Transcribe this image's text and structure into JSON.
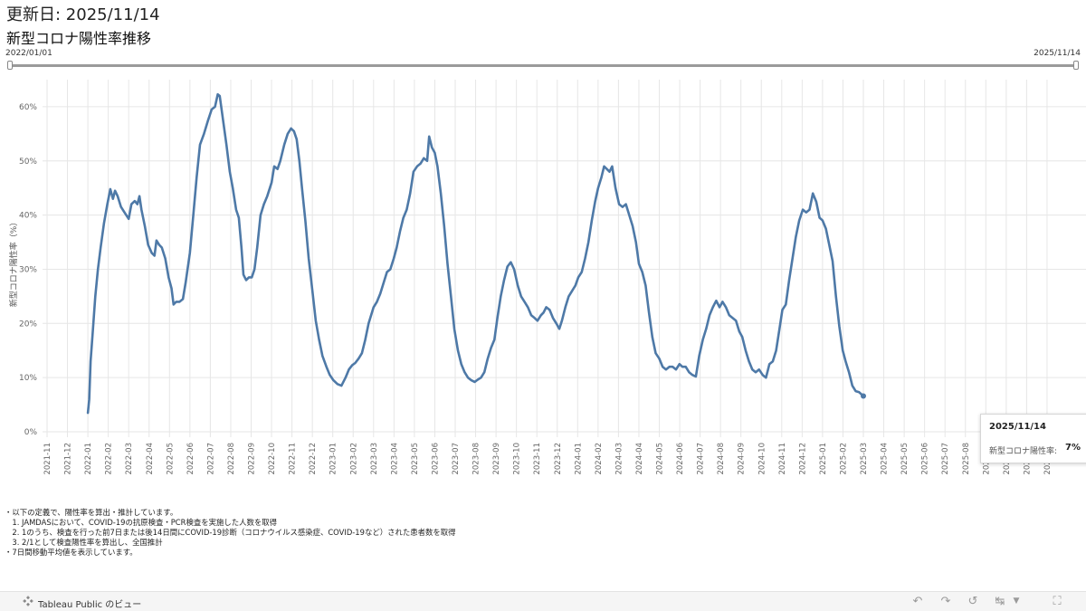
{
  "header": {
    "updated_label": "更新日: 2025/11/14",
    "title": "新型コロナ陽性率推移"
  },
  "date_range": {
    "start": "2022/01/01",
    "end": "2025/11/14"
  },
  "tooltip": {
    "date": "2025/11/14",
    "label": "新型コロナ陽性率:",
    "value": "7%"
  },
  "notes": [
    "・以下の定義で、陽性率を算出・推計しています。",
    "　1. JAMDASにおいて、COVID-19の抗原検査・PCR検査を実施した人数を取得",
    "　2. 1のうち、検査を行った前7日または後14日間にCOVID-19診断（コロナウイルス感染症、COVID-19など）された患者数を取得",
    "　3. 2/1として検査陽性率を算出し、全国推計",
    "・7日間移動平均値を表示しています。"
  ],
  "footer": {
    "brand_label": "Tableau Public のビュー",
    "icons": [
      "undo-icon",
      "redo-icon",
      "revert-icon",
      "share-icon",
      "dropdown-caret-icon",
      "fullscreen-icon"
    ]
  },
  "colors": {
    "line": "#4e79a7",
    "grid": "#e6e6e6",
    "axis_text": "#666666"
  },
  "chart_data": {
    "type": "line",
    "ylabel": "新型コロナ陽性率（%）",
    "ylim": [
      0,
      65
    ],
    "yticks": [
      0,
      10,
      20,
      30,
      40,
      50,
      60
    ],
    "ytick_labels": [
      "0%",
      "10%",
      "20%",
      "30%",
      "40%",
      "50%",
      "60%"
    ],
    "x_tick_labels": [
      "2021-11",
      "2021-12",
      "2022-01",
      "2022-02",
      "2022-03",
      "2022-04",
      "2022-05",
      "2022-06",
      "2022-07",
      "2022-08",
      "2022-09",
      "2022-10",
      "2022-11",
      "2022-12",
      "2023-01",
      "2023-02",
      "2023-03",
      "2023-04",
      "2023-05",
      "2023-06",
      "2023-07",
      "2023-08",
      "2023-09",
      "2023-10",
      "2023-11",
      "2023-12",
      "2024-01",
      "2024-02",
      "2024-03",
      "2024-04",
      "2024-05",
      "2024-06",
      "2024-07",
      "2024-08",
      "2024-09",
      "2024-10",
      "2024-11",
      "2024-12",
      "2025-01",
      "2025-02",
      "2025-03",
      "2025-04",
      "2025-05",
      "2025-06",
      "2025-07",
      "2025-08",
      "2025-09",
      "2025-10",
      "2025-11",
      "2025-12"
    ],
    "grid": true,
    "series": [
      {
        "color": "#4e79a7",
        "points": [
          [
            "2022-01-01",
            3.5
          ],
          [
            "2022-01-03",
            6.0
          ],
          [
            "2022-01-05",
            13.0
          ],
          [
            "2022-01-08",
            18.0
          ],
          [
            "2022-01-12",
            25.0
          ],
          [
            "2022-01-16",
            30.0
          ],
          [
            "2022-01-20",
            34.0
          ],
          [
            "2022-01-25",
            38.5
          ],
          [
            "2022-01-30",
            42.0
          ],
          [
            "2022-02-04",
            44.8
          ],
          [
            "2022-02-08",
            43.0
          ],
          [
            "2022-02-11",
            44.5
          ],
          [
            "2022-02-15",
            43.5
          ],
          [
            "2022-02-20",
            41.5
          ],
          [
            "2022-02-25",
            40.5
          ],
          [
            "2022-03-01",
            39.3
          ],
          [
            "2022-03-05",
            42.0
          ],
          [
            "2022-03-10",
            42.6
          ],
          [
            "2022-03-14",
            42.0
          ],
          [
            "2022-03-17",
            43.5
          ],
          [
            "2022-03-20",
            41.0
          ],
          [
            "2022-03-25",
            38.0
          ],
          [
            "2022-03-30",
            34.5
          ],
          [
            "2022-04-05",
            33.0
          ],
          [
            "2022-04-09",
            32.5
          ],
          [
            "2022-04-12",
            35.3
          ],
          [
            "2022-04-16",
            34.5
          ],
          [
            "2022-04-20",
            34.0
          ],
          [
            "2022-04-25",
            32.0
          ],
          [
            "2022-04-30",
            28.5
          ],
          [
            "2022-05-04",
            26.5
          ],
          [
            "2022-05-07",
            23.5
          ],
          [
            "2022-05-11",
            24.0
          ],
          [
            "2022-05-16",
            24.0
          ],
          [
            "2022-05-21",
            24.5
          ],
          [
            "2022-05-25",
            27.5
          ],
          [
            "2022-06-01",
            33.0
          ],
          [
            "2022-06-06",
            40.0
          ],
          [
            "2022-06-11",
            47.0
          ],
          [
            "2022-06-16",
            53.0
          ],
          [
            "2022-06-22",
            55.0
          ],
          [
            "2022-06-28",
            57.5
          ],
          [
            "2022-07-03",
            59.5
          ],
          [
            "2022-07-08",
            60.0
          ],
          [
            "2022-07-12",
            62.3
          ],
          [
            "2022-07-15",
            62.0
          ],
          [
            "2022-07-20",
            57.5
          ],
          [
            "2022-07-25",
            53.0
          ],
          [
            "2022-07-30",
            48.0
          ],
          [
            "2022-08-04",
            45.0
          ],
          [
            "2022-08-09",
            41.0
          ],
          [
            "2022-08-13",
            39.5
          ],
          [
            "2022-08-17",
            34.0
          ],
          [
            "2022-08-20",
            29.0
          ],
          [
            "2022-08-24",
            28.0
          ],
          [
            "2022-08-28",
            28.5
          ],
          [
            "2022-09-02",
            28.5
          ],
          [
            "2022-09-06",
            30.0
          ],
          [
            "2022-09-10",
            34.0
          ],
          [
            "2022-09-15",
            40.0
          ],
          [
            "2022-09-20",
            42.0
          ],
          [
            "2022-09-25",
            43.5
          ],
          [
            "2022-10-01",
            46.0
          ],
          [
            "2022-10-05",
            49.0
          ],
          [
            "2022-10-10",
            48.5
          ],
          [
            "2022-10-14",
            50.0
          ],
          [
            "2022-10-20",
            53.0
          ],
          [
            "2022-10-25",
            55.0
          ],
          [
            "2022-10-30",
            56.0
          ],
          [
            "2022-11-04",
            55.5
          ],
          [
            "2022-11-08",
            54.0
          ],
          [
            "2022-11-12",
            50.0
          ],
          [
            "2022-11-16",
            45.0
          ],
          [
            "2022-11-21",
            39.0
          ],
          [
            "2022-11-26",
            32.0
          ],
          [
            "2022-12-01",
            26.0
          ],
          [
            "2022-12-06",
            20.5
          ],
          [
            "2022-12-11",
            17.0
          ],
          [
            "2022-12-16",
            14.0
          ],
          [
            "2022-12-22",
            12.0
          ],
          [
            "2022-12-27",
            10.5
          ],
          [
            "2023-01-02",
            9.5
          ],
          [
            "2023-01-08",
            8.8
          ],
          [
            "2023-01-14",
            8.5
          ],
          [
            "2023-01-20",
            10.0
          ],
          [
            "2023-01-25",
            11.5
          ],
          [
            "2023-01-30",
            12.3
          ],
          [
            "2023-02-04",
            12.7
          ],
          [
            "2023-02-09",
            13.5
          ],
          [
            "2023-02-14",
            14.5
          ],
          [
            "2023-02-19",
            17.0
          ],
          [
            "2023-02-24",
            20.0
          ],
          [
            "2023-03-01",
            23.0
          ],
          [
            "2023-03-06",
            24.0
          ],
          [
            "2023-03-11",
            25.5
          ],
          [
            "2023-03-16",
            27.5
          ],
          [
            "2023-03-21",
            29.5
          ],
          [
            "2023-03-26",
            30.0
          ],
          [
            "2023-03-31",
            32.0
          ],
          [
            "2023-04-05",
            34.0
          ],
          [
            "2023-04-10",
            37.0
          ],
          [
            "2023-04-15",
            39.5
          ],
          [
            "2023-04-20",
            41.0
          ],
          [
            "2023-04-25",
            44.0
          ],
          [
            "2023-04-30",
            48.0
          ],
          [
            "2023-05-05",
            49.0
          ],
          [
            "2023-05-10",
            49.5
          ],
          [
            "2023-05-15",
            50.5
          ],
          [
            "2023-05-20",
            50.0
          ],
          [
            "2023-05-23",
            54.5
          ],
          [
            "2023-05-27",
            52.5
          ],
          [
            "2023-06-01",
            51.5
          ],
          [
            "2023-06-05",
            49.0
          ],
          [
            "2023-06-10",
            44.0
          ],
          [
            "2023-06-15",
            38.0
          ],
          [
            "2023-06-20",
            31.0
          ],
          [
            "2023-06-25",
            25.0
          ],
          [
            "2023-06-30",
            19.0
          ],
          [
            "2023-07-05",
            15.0
          ],
          [
            "2023-07-10",
            12.5
          ],
          [
            "2023-07-15",
            11.0
          ],
          [
            "2023-07-20",
            10.0
          ],
          [
            "2023-07-25",
            9.5
          ],
          [
            "2023-07-30",
            9.2
          ],
          [
            "2023-08-04",
            9.6
          ],
          [
            "2023-08-09",
            10.0
          ],
          [
            "2023-08-14",
            11.0
          ],
          [
            "2023-08-19",
            13.5
          ],
          [
            "2023-08-24",
            15.5
          ],
          [
            "2023-08-29",
            17.0
          ],
          [
            "2023-09-03",
            21.0
          ],
          [
            "2023-09-08",
            25.0
          ],
          [
            "2023-09-13",
            28.0
          ],
          [
            "2023-09-18",
            30.5
          ],
          [
            "2023-09-23",
            31.3
          ],
          [
            "2023-09-28",
            30.0
          ],
          [
            "2023-10-03",
            27.0
          ],
          [
            "2023-10-08",
            25.0
          ],
          [
            "2023-10-13",
            24.0
          ],
          [
            "2023-10-18",
            23.0
          ],
          [
            "2023-10-23",
            21.5
          ],
          [
            "2023-10-28",
            21.0
          ],
          [
            "2023-11-02",
            20.5
          ],
          [
            "2023-11-07",
            21.5
          ],
          [
            "2023-11-11",
            22.0
          ],
          [
            "2023-11-15",
            23.0
          ],
          [
            "2023-11-20",
            22.5
          ],
          [
            "2023-11-25",
            21.0
          ],
          [
            "2023-11-30",
            20.0
          ],
          [
            "2023-12-04",
            19.0
          ],
          [
            "2023-12-08",
            20.5
          ],
          [
            "2023-12-13",
            23.0
          ],
          [
            "2023-12-18",
            25.0
          ],
          [
            "2023-12-23",
            26.0
          ],
          [
            "2023-12-28",
            27.0
          ],
          [
            "2024-01-02",
            28.5
          ],
          [
            "2024-01-07",
            29.5
          ],
          [
            "2024-01-12",
            32.0
          ],
          [
            "2024-01-17",
            35.0
          ],
          [
            "2024-01-22",
            39.0
          ],
          [
            "2024-01-27",
            42.5
          ],
          [
            "2024-02-01",
            45.0
          ],
          [
            "2024-02-06",
            47.0
          ],
          [
            "2024-02-10",
            49.0
          ],
          [
            "2024-02-14",
            48.5
          ],
          [
            "2024-02-18",
            48.0
          ],
          [
            "2024-02-22",
            49.0
          ],
          [
            "2024-02-27",
            45.0
          ],
          [
            "2024-03-02",
            42.0
          ],
          [
            "2024-03-07",
            41.5
          ],
          [
            "2024-03-12",
            42.0
          ],
          [
            "2024-03-17",
            40.0
          ],
          [
            "2024-03-22",
            38.0
          ],
          [
            "2024-03-27",
            35.0
          ],
          [
            "2024-04-01",
            31.0
          ],
          [
            "2024-04-06",
            29.5
          ],
          [
            "2024-04-11",
            27.0
          ],
          [
            "2024-04-16",
            22.0
          ],
          [
            "2024-04-21",
            17.5
          ],
          [
            "2024-04-26",
            14.5
          ],
          [
            "2024-05-01",
            13.5
          ],
          [
            "2024-05-06",
            12.0
          ],
          [
            "2024-05-11",
            11.5
          ],
          [
            "2024-05-16",
            12.0
          ],
          [
            "2024-05-21",
            12.0
          ],
          [
            "2024-05-26",
            11.5
          ],
          [
            "2024-05-31",
            12.5
          ],
          [
            "2024-06-05",
            12.0
          ],
          [
            "2024-06-10",
            12.0
          ],
          [
            "2024-06-15",
            11.0
          ],
          [
            "2024-06-20",
            10.5
          ],
          [
            "2024-06-25",
            10.2
          ],
          [
            "2024-06-30",
            14.0
          ],
          [
            "2024-07-05",
            17.0
          ],
          [
            "2024-07-10",
            19.0
          ],
          [
            "2024-07-15",
            21.5
          ],
          [
            "2024-07-20",
            23.0
          ],
          [
            "2024-07-25",
            24.2
          ],
          [
            "2024-07-30",
            23.0
          ],
          [
            "2024-08-04",
            24.0
          ],
          [
            "2024-08-09",
            23.0
          ],
          [
            "2024-08-14",
            21.5
          ],
          [
            "2024-08-19",
            21.0
          ],
          [
            "2024-08-24",
            20.5
          ],
          [
            "2024-08-29",
            18.5
          ],
          [
            "2024-09-03",
            17.5
          ],
          [
            "2024-09-08",
            15.0
          ],
          [
            "2024-09-13",
            13.0
          ],
          [
            "2024-09-18",
            11.5
          ],
          [
            "2024-09-23",
            11.0
          ],
          [
            "2024-09-28",
            11.5
          ],
          [
            "2024-10-03",
            10.5
          ],
          [
            "2024-10-08",
            10.0
          ],
          [
            "2024-10-13",
            12.5
          ],
          [
            "2024-10-18",
            13.0
          ],
          [
            "2024-10-23",
            15.0
          ],
          [
            "2024-10-28",
            19.0
          ],
          [
            "2024-11-02",
            22.5
          ],
          [
            "2024-11-07",
            23.5
          ],
          [
            "2024-11-12",
            28.0
          ],
          [
            "2024-11-17",
            32.0
          ],
          [
            "2024-11-22",
            36.0
          ],
          [
            "2024-11-27",
            39.0
          ],
          [
            "2024-12-02",
            41.0
          ],
          [
            "2024-12-07",
            40.5
          ],
          [
            "2024-12-12",
            41.0
          ],
          [
            "2024-12-17",
            44.0
          ],
          [
            "2024-12-22",
            42.5
          ],
          [
            "2024-12-27",
            39.5
          ],
          [
            "2025-01-01",
            39.0
          ],
          [
            "2025-01-06",
            37.5
          ],
          [
            "2025-01-11",
            34.5
          ],
          [
            "2025-01-16",
            31.5
          ],
          [
            "2025-01-21",
            25.0
          ],
          [
            "2025-01-26",
            19.5
          ],
          [
            "2025-01-31",
            15.0
          ],
          [
            "2025-02-05",
            13.0
          ],
          [
            "2025-02-10",
            11.0
          ],
          [
            "2025-02-15",
            8.5
          ],
          [
            "2025-02-20",
            7.5
          ],
          [
            "2025-02-25",
            7.3
          ],
          [
            "2025-03-01",
            6.6
          ]
        ]
      }
    ]
  }
}
